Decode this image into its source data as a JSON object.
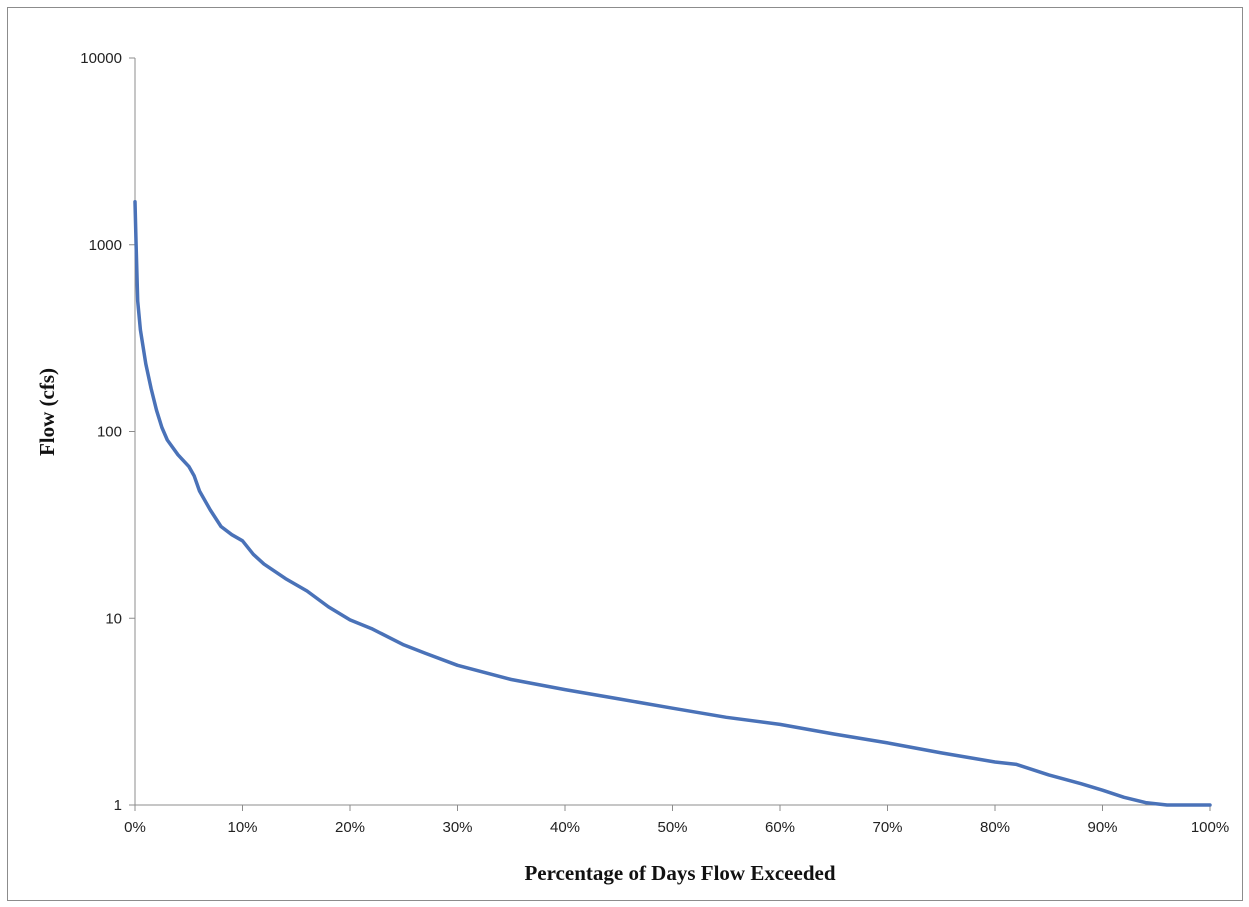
{
  "chart_data": {
    "type": "line",
    "xlabel": "Percentage of Days Flow Exceeded",
    "ylabel": "Flow (cfs)",
    "x_unit": "%",
    "xlim": [
      0,
      100
    ],
    "ylim": [
      1,
      10000
    ],
    "y_scale": "log",
    "grid": false,
    "legend": "none",
    "x_ticks": [
      "0%",
      "10%",
      "20%",
      "30%",
      "40%",
      "50%",
      "60%",
      "70%",
      "80%",
      "90%",
      "100%"
    ],
    "y_ticks": [
      "1",
      "10",
      "100",
      "1000",
      "10000"
    ],
    "series": [
      {
        "color": "#4a72b8",
        "x": [
          0,
          0.1,
          0.25,
          0.5,
          1,
          1.5,
          2,
          2.5,
          3,
          4,
          5,
          5.5,
          6,
          7,
          8,
          9,
          10,
          11,
          12,
          14,
          16,
          18,
          20,
          22,
          25,
          27,
          30,
          35,
          40,
          45,
          50,
          55,
          60,
          65,
          70,
          75,
          80,
          82,
          85,
          88,
          90,
          92,
          94,
          96,
          98,
          100
        ],
        "y": [
          1700,
          1000,
          500,
          350,
          230,
          170,
          130,
          105,
          90,
          75,
          65,
          58,
          48,
          38,
          31,
          28,
          26,
          22,
          19.5,
          16.3,
          14,
          11.5,
          9.8,
          8.8,
          7.2,
          6.5,
          5.6,
          4.7,
          4.15,
          3.7,
          3.3,
          2.95,
          2.7,
          2.4,
          2.15,
          1.9,
          1.7,
          1.65,
          1.45,
          1.3,
          1.2,
          1.1,
          1.03,
          1.0,
          1.0,
          1.0
        ]
      }
    ]
  }
}
